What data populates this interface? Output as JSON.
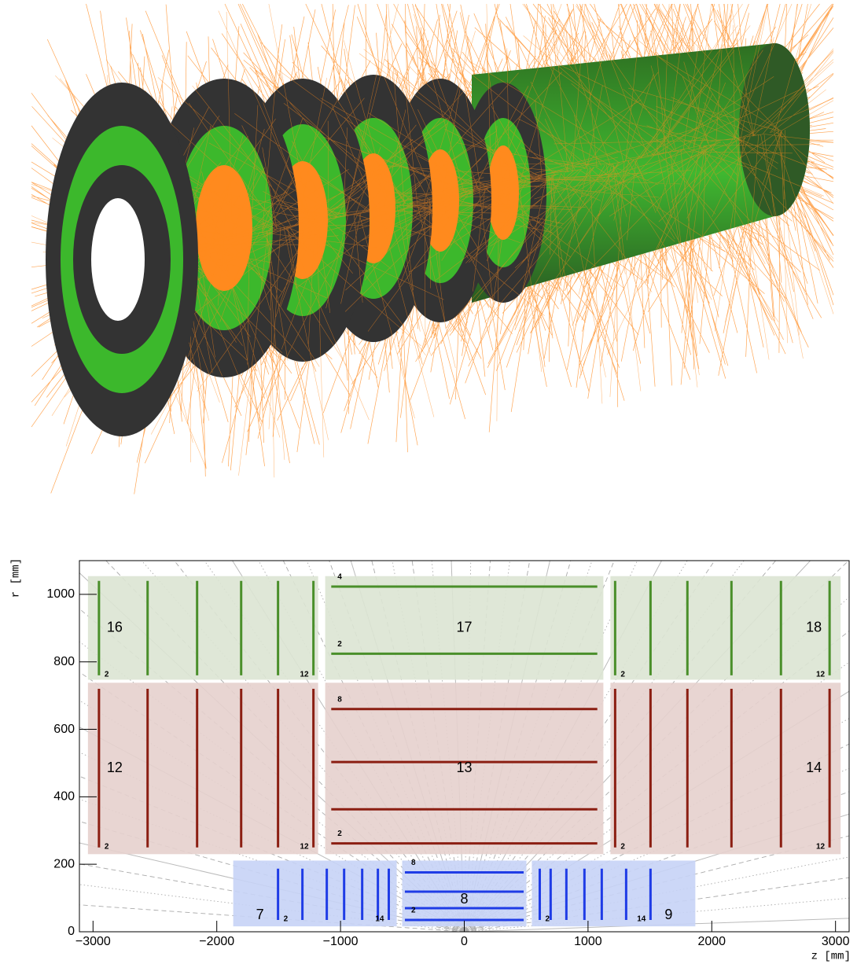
{
  "chart_data": {
    "type": "detector",
    "xlabel": "z  [mm]",
    "ylabel": "r  [mm]",
    "xlim": [
      -3110,
      3110
    ],
    "ylim": [
      0,
      1100
    ],
    "xticks": [
      {
        "value": -3000,
        "label": "−3000"
      },
      {
        "value": -2000,
        "label": "−2000"
      },
      {
        "value": -1000,
        "label": "−1000"
      },
      0,
      1000,
      2000,
      3000
    ],
    "yticks": [
      0,
      200,
      400,
      600,
      800,
      1000
    ],
    "volumes": [
      {
        "label": "7",
        "fill": "#c6d3f6",
        "color": "#1f3ce6",
        "zlim": [
          -1867,
          -546
        ],
        "rlim": [
          16,
          211
        ],
        "orientation": "disk",
        "layers": [
          -1505,
          -1308,
          -1111,
          -971,
          -825,
          -698,
          -610
        ],
        "extent": [
          35,
          187
        ],
        "layer_labels": [
          "2",
          "14"
        ]
      },
      {
        "label": "8",
        "fill": "#c6d3f6",
        "color": "#1f3ce6",
        "zlim": [
          -502,
          502
        ],
        "rlim": [
          16,
          211
        ],
        "orientation": "barrel",
        "layers": [
          35,
          70,
          119,
          176
        ],
        "extent": [
          -480,
          480
        ],
        "layer_labels": [
          "2",
          "8"
        ]
      },
      {
        "label": "9",
        "fill": "#c6d3f6",
        "color": "#1f3ce6",
        "zlim": [
          546,
          1867
        ],
        "rlim": [
          16,
          211
        ],
        "orientation": "disk",
        "layers": [
          610,
          698,
          825,
          971,
          1111,
          1308,
          1505
        ],
        "extent": [
          35,
          187
        ],
        "layer_labels": [
          "2",
          "14"
        ]
      },
      {
        "label": "12",
        "fill": "#e6d0cd",
        "color": "#8b1e12",
        "zlim": [
          -3041,
          -1181
        ],
        "rlim": [
          230,
          738
        ],
        "orientation": "disk",
        "layers": [
          -2952,
          -2559,
          -2159,
          -1803,
          -1505,
          -1219
        ],
        "extent": [
          250,
          720
        ],
        "layer_labels": [
          "2",
          "12"
        ]
      },
      {
        "label": "13",
        "fill": "#e6d0cd",
        "color": "#8b1e12",
        "zlim": [
          -1124,
          1124
        ],
        "rlim": [
          230,
          738
        ],
        "orientation": "barrel",
        "layers": [
          262,
          363,
          503,
          660
        ],
        "extent": [
          -1075,
          1075
        ],
        "layer_labels": [
          "2",
          "8"
        ]
      },
      {
        "label": "14",
        "fill": "#e6d0cd",
        "color": "#8b1e12",
        "zlim": [
          1181,
          3041
        ],
        "rlim": [
          230,
          738
        ],
        "orientation": "disk",
        "layers": [
          1219,
          1505,
          1803,
          2159,
          2559,
          2952
        ],
        "extent": [
          250,
          720
        ],
        "layer_labels": [
          "2",
          "12"
        ]
      },
      {
        "label": "16",
        "fill": "#dce4d3",
        "color": "#4a8f2a",
        "zlim": [
          -3041,
          -1181
        ],
        "rlim": [
          747,
          1054
        ],
        "orientation": "disk",
        "layers": [
          -2952,
          -2559,
          -2159,
          -1803,
          -1505,
          -1219
        ],
        "extent": [
          760,
          1040
        ],
        "layer_labels": [
          "2",
          "12"
        ]
      },
      {
        "label": "17",
        "fill": "#dce4d3",
        "color": "#4a8f2a",
        "zlim": [
          -1124,
          1124
        ],
        "rlim": [
          747,
          1054
        ],
        "orientation": "barrel",
        "layers": [
          824,
          1023
        ],
        "extent": [
          -1075,
          1075
        ],
        "layer_labels": [
          "2",
          "4"
        ]
      },
      {
        "label": "18",
        "fill": "#dce4d3",
        "color": "#4a8f2a",
        "zlim": [
          1181,
          3041
        ],
        "rlim": [
          747,
          1054
        ],
        "orientation": "disk",
        "layers": [
          1219,
          1505,
          1803,
          2159,
          2559,
          2952
        ],
        "extent": [
          760,
          1040
        ],
        "layer_labels": [
          "2",
          "12"
        ]
      }
    ]
  }
}
